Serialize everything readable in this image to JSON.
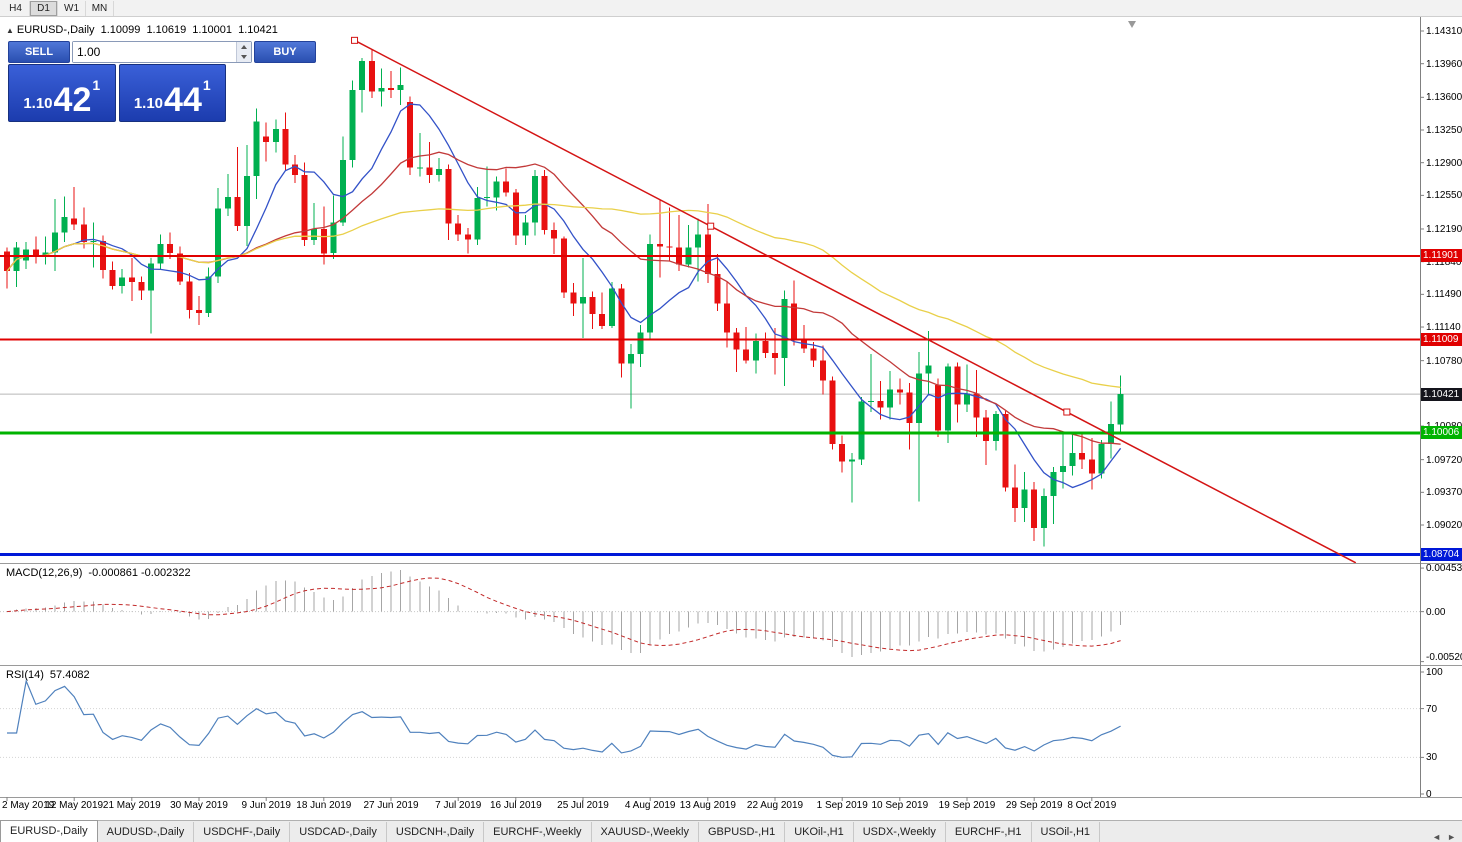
{
  "toolbar": {
    "timeframes": [
      {
        "label": "H4",
        "active": false
      },
      {
        "label": "D1",
        "active": true
      },
      {
        "label": "W1",
        "active": false
      },
      {
        "label": "MN",
        "active": false
      }
    ]
  },
  "header": {
    "collapse_icon": "▲",
    "symbol": "EURUSD-,Daily",
    "open": "1.10099",
    "high": "1.10619",
    "low": "1.10001",
    "close": "1.10421"
  },
  "trade_panel": {
    "sell_label": "SELL",
    "buy_label": "BUY",
    "volume": "1.00",
    "sell_price_base": "1.10",
    "sell_price_pips": "42",
    "sell_price_point": "1",
    "buy_price_base": "1.10",
    "buy_price_pips": "44",
    "buy_price_point": "1"
  },
  "price_axis": {
    "ticks": [
      "1.14310",
      "1.13960",
      "1.13600",
      "1.13250",
      "1.12900",
      "1.12550",
      "1.12190",
      "1.11840",
      "1.11490",
      "1.11140",
      "1.10780",
      "1.10430",
      "1.10080",
      "1.09720",
      "1.09370",
      "1.09020"
    ]
  },
  "levels": [
    {
      "name": "resistance-upper",
      "price": 1.11901,
      "label": "1.11901",
      "color": "#e00000",
      "width": 2
    },
    {
      "name": "resistance-lower",
      "price": 1.11009,
      "label": "1.11009",
      "color": "#e00000",
      "width": 2
    },
    {
      "name": "support-green",
      "price": 1.10006,
      "label": "1.10006",
      "color": "#00b300",
      "width": 3
    },
    {
      "name": "support-blue",
      "price": 1.08704,
      "label": "1.08704",
      "color": "#0018d8",
      "width": 3
    }
  ],
  "current_price": {
    "price": 1.10421,
    "label": "1.10421",
    "line_color": "#b6b6b6",
    "label_bg": "#14141c"
  },
  "trendline": {
    "color": "#d41414",
    "p1": {
      "index": 36.2,
      "price": 1.1421
    },
    "p2": {
      "index": 110.4,
      "price": 1.1023
    },
    "extend_to_index": 140.5
  },
  "macd": {
    "label": "MACD(12,26,9)",
    "values_text": "-0.000861 -0.002322",
    "fast": 12,
    "slow": 26,
    "signal": 9,
    "hist_color": "#a6a6a6",
    "signal_color": "#c22a2a",
    "scale_ticks": [
      {
        "value": 0.004536,
        "label": "0.004536"
      },
      {
        "value": 0,
        "label": "0.00"
      },
      {
        "value": -0.005205,
        "label": "-0.005205"
      }
    ]
  },
  "rsi": {
    "label": "RSI(14)",
    "value_text": "57.4082",
    "period": 14,
    "color": "#4f81bd",
    "scale_ticks": [
      {
        "value": 100,
        "label": "100"
      },
      {
        "value": 70,
        "label": "70"
      },
      {
        "value": 30,
        "label": "30"
      },
      {
        "value": 0,
        "label": "0"
      }
    ]
  },
  "time_axis": {
    "ticks": [
      {
        "label": "2 May 2019",
        "index": 0
      },
      {
        "label": "12 May 2019",
        "index": 7
      },
      {
        "label": "21 May 2019",
        "index": 13
      },
      {
        "label": "30 May 2019",
        "index": 20
      },
      {
        "label": "9 Jun 2019",
        "index": 27
      },
      {
        "label": "18 Jun 2019",
        "index": 33
      },
      {
        "label": "27 Jun 2019",
        "index": 40
      },
      {
        "label": "7 Jul 2019",
        "index": 47
      },
      {
        "label": "16 Jul 2019",
        "index": 53
      },
      {
        "label": "25 Jul 2019",
        "index": 60
      },
      {
        "label": "4 Aug 2019",
        "index": 67
      },
      {
        "label": "13 Aug 2019",
        "index": 73
      },
      {
        "label": "22 Aug 2019",
        "index": 80
      },
      {
        "label": "1 Sep 2019",
        "index": 87
      },
      {
        "label": "10 Sep 2019",
        "index": 93
      },
      {
        "label": "19 Sep 2019",
        "index": 100
      },
      {
        "label": "29 Sep 2019",
        "index": 107
      },
      {
        "label": "8 Oct 2019",
        "index": 113
      }
    ]
  },
  "tabs": {
    "scroll_left_icon": "◄",
    "scroll_right_icon": "►",
    "items": [
      {
        "label": "EURUSD-,Daily",
        "active": true
      },
      {
        "label": "AUDUSD-,Daily",
        "active": false
      },
      {
        "label": "USDCHF-,Daily",
        "active": false
      },
      {
        "label": "USDCAD-,Daily",
        "active": false
      },
      {
        "label": "USDCNH-,Daily",
        "active": false
      },
      {
        "label": "EURCHF-,Weekly",
        "active": false
      },
      {
        "label": "XAUUSD-,Weekly",
        "active": false
      },
      {
        "label": "GBPUSD-,H1",
        "active": false
      },
      {
        "label": "UKOil-,H1",
        "active": false
      },
      {
        "label": "USDX-,Weekly",
        "active": false
      },
      {
        "label": "EURCHF-,H1",
        "active": false
      },
      {
        "label": "USOil-,H1",
        "active": false
      }
    ]
  },
  "chart_data": {
    "type": "candlestick",
    "symbol": "EURUSD",
    "timeframe": "Daily",
    "up_color": "#00b050",
    "down_color": "#e81010",
    "moving_averages": [
      {
        "period": 8,
        "color": "#3352c8"
      },
      {
        "period": 21,
        "color": "#c23a3a"
      },
      {
        "period": 50,
        "color": "#e9d04a"
      }
    ],
    "candles": [
      [
        1.1195,
        1.1199,
        1.1155,
        1.1174
      ],
      [
        1.1174,
        1.1205,
        1.1157,
        1.1199
      ],
      [
        1.1185,
        1.1205,
        1.1176,
        1.1197
      ],
      [
        1.1197,
        1.1211,
        1.1182,
        1.119
      ],
      [
        1.119,
        1.1211,
        1.1181,
        1.1194
      ],
      [
        1.1194,
        1.1251,
        1.1174,
        1.1215
      ],
      [
        1.1215,
        1.1254,
        1.1205,
        1.1232
      ],
      [
        1.123,
        1.1264,
        1.1218,
        1.1224
      ],
      [
        1.1224,
        1.1242,
        1.1198,
        1.1205
      ],
      [
        1.1205,
        1.1226,
        1.1178,
        1.1206
      ],
      [
        1.1206,
        1.1212,
        1.1166,
        1.1175
      ],
      [
        1.1175,
        1.1184,
        1.1154,
        1.1158
      ],
      [
        1.1158,
        1.1176,
        1.115,
        1.1167
      ],
      [
        1.1167,
        1.1188,
        1.1142,
        1.1162
      ],
      [
        1.1162,
        1.1168,
        1.1143,
        1.1153
      ],
      [
        1.1153,
        1.1188,
        1.1107,
        1.1182
      ],
      [
        1.1182,
        1.1213,
        1.1175,
        1.1203
      ],
      [
        1.1203,
        1.1215,
        1.1187,
        1.1193
      ],
      [
        1.1193,
        1.12,
        1.1159,
        1.1163
      ],
      [
        1.1163,
        1.1172,
        1.1123,
        1.1132
      ],
      [
        1.1132,
        1.1147,
        1.1116,
        1.1129
      ],
      [
        1.1129,
        1.1178,
        1.1125,
        1.1168
      ],
      [
        1.1168,
        1.1263,
        1.1161,
        1.1241
      ],
      [
        1.1241,
        1.1278,
        1.1233,
        1.1253
      ],
      [
        1.1253,
        1.1307,
        1.1217,
        1.1222
      ],
      [
        1.1222,
        1.1309,
        1.1201,
        1.1276
      ],
      [
        1.1276,
        1.1348,
        1.1251,
        1.1334
      ],
      [
        1.1318,
        1.1333,
        1.1291,
        1.1312
      ],
      [
        1.1312,
        1.1336,
        1.1301,
        1.1326
      ],
      [
        1.1326,
        1.1344,
        1.1281,
        1.1288
      ],
      [
        1.1288,
        1.1298,
        1.1268,
        1.1277
      ],
      [
        1.1277,
        1.129,
        1.1201,
        1.1207
      ],
      [
        1.1207,
        1.1247,
        1.1202,
        1.1219
      ],
      [
        1.1219,
        1.1243,
        1.1181,
        1.1193
      ],
      [
        1.1193,
        1.1255,
        1.1187,
        1.1226
      ],
      [
        1.1226,
        1.1318,
        1.1222,
        1.1293
      ],
      [
        1.1293,
        1.1378,
        1.1285,
        1.1368
      ],
      [
        1.1368,
        1.1402,
        1.1344,
        1.1399
      ],
      [
        1.1399,
        1.1412,
        1.1359,
        1.1366
      ],
      [
        1.1366,
        1.1391,
        1.135,
        1.137
      ],
      [
        1.137,
        1.1388,
        1.1359,
        1.1368
      ],
      [
        1.1368,
        1.1392,
        1.1352,
        1.1373
      ],
      [
        1.1355,
        1.1361,
        1.1277,
        1.1285
      ],
      [
        1.1285,
        1.1322,
        1.1275,
        1.1285
      ],
      [
        1.1285,
        1.1312,
        1.1268,
        1.1277
      ],
      [
        1.1277,
        1.1295,
        1.127,
        1.1283
      ],
      [
        1.1283,
        1.1288,
        1.1207,
        1.1225
      ],
      [
        1.1225,
        1.1234,
        1.1206,
        1.1213
      ],
      [
        1.1213,
        1.122,
        1.1193,
        1.1208
      ],
      [
        1.1208,
        1.1264,
        1.1202,
        1.1252
      ],
      [
        1.1252,
        1.1286,
        1.1243,
        1.1253
      ],
      [
        1.1253,
        1.1275,
        1.1239,
        1.127
      ],
      [
        1.127,
        1.1284,
        1.1254,
        1.1258
      ],
      [
        1.1258,
        1.1262,
        1.1202,
        1.1212
      ],
      [
        1.1212,
        1.1234,
        1.1202,
        1.1226
      ],
      [
        1.1226,
        1.1282,
        1.1212,
        1.1276
      ],
      [
        1.1276,
        1.1282,
        1.1213,
        1.1218
      ],
      [
        1.1218,
        1.1226,
        1.1192,
        1.1209
      ],
      [
        1.1209,
        1.1211,
        1.1145,
        1.1151
      ],
      [
        1.1151,
        1.1161,
        1.1126,
        1.1139
      ],
      [
        1.1139,
        1.1188,
        1.1102,
        1.1146
      ],
      [
        1.1146,
        1.1152,
        1.1112,
        1.1128
      ],
      [
        1.1128,
        1.1151,
        1.1112,
        1.1115
      ],
      [
        1.1115,
        1.1162,
        1.1113,
        1.1155
      ],
      [
        1.1155,
        1.116,
        1.106,
        1.1075
      ],
      [
        1.1075,
        1.1096,
        1.1027,
        1.1085
      ],
      [
        1.1085,
        1.1116,
        1.1071,
        1.1108
      ],
      [
        1.1108,
        1.1213,
        1.1101,
        1.1203
      ],
      [
        1.1203,
        1.125,
        1.1167,
        1.12
      ],
      [
        1.12,
        1.1242,
        1.1184,
        1.1199
      ],
      [
        1.1199,
        1.1234,
        1.1174,
        1.1181
      ],
      [
        1.1181,
        1.1223,
        1.1178,
        1.1199
      ],
      [
        1.1199,
        1.123,
        1.1163,
        1.1213
      ],
      [
        1.1213,
        1.1246,
        1.1161,
        1.1171
      ],
      [
        1.1171,
        1.1192,
        1.1131,
        1.1139
      ],
      [
        1.1139,
        1.1163,
        1.1092,
        1.1108
      ],
      [
        1.1108,
        1.1113,
        1.1066,
        1.109
      ],
      [
        1.109,
        1.1114,
        1.1075,
        1.1078
      ],
      [
        1.1078,
        1.1107,
        1.1064,
        1.1099
      ],
      [
        1.1099,
        1.1108,
        1.1081,
        1.1086
      ],
      [
        1.1086,
        1.1113,
        1.1063,
        1.1081
      ],
      [
        1.1081,
        1.1153,
        1.1051,
        1.1144
      ],
      [
        1.1139,
        1.1164,
        1.1094,
        1.1101
      ],
      [
        1.1101,
        1.1116,
        1.1086,
        1.1091
      ],
      [
        1.1091,
        1.1098,
        1.1071,
        1.1078
      ],
      [
        1.1078,
        1.1094,
        1.1042,
        1.1057
      ],
      [
        1.1057,
        1.1061,
        1.0983,
        1.0989
      ],
      [
        1.0989,
        1.0998,
        1.0958,
        1.097
      ],
      [
        1.097,
        1.0979,
        1.0926,
        1.0972
      ],
      [
        1.0972,
        1.1039,
        1.0966,
        1.1034
      ],
      [
        1.1034,
        1.1085,
        1.1023,
        1.1035
      ],
      [
        1.1035,
        1.1056,
        1.1015,
        1.1028
      ],
      [
        1.1028,
        1.1067,
        1.1015,
        1.1047
      ],
      [
        1.1047,
        1.1059,
        1.1031,
        1.1044
      ],
      [
        1.1044,
        1.1054,
        1.0983,
        1.1011
      ],
      [
        1.1011,
        1.1087,
        1.0927,
        1.1064
      ],
      [
        1.1064,
        1.111,
        1.1041,
        1.1073
      ],
      [
        1.1052,
        1.1059,
        1.0996,
        1.1003
      ],
      [
        1.1003,
        1.1075,
        1.099,
        1.1072
      ],
      [
        1.1072,
        1.1076,
        1.1012,
        1.1031
      ],
      [
        1.1031,
        1.1074,
        1.1023,
        1.1043
      ],
      [
        1.1043,
        1.1068,
        1.0996,
        1.1017
      ],
      [
        1.1017,
        1.1025,
        1.0966,
        1.0992
      ],
      [
        1.0992,
        1.1024,
        1.0982,
        1.1021
      ],
      [
        1.1021,
        1.1024,
        1.0938,
        1.0942
      ],
      [
        1.0942,
        1.0967,
        1.0905,
        1.092
      ],
      [
        1.092,
        1.0959,
        1.0905,
        1.094
      ],
      [
        1.094,
        1.0948,
        1.0885,
        1.0899
      ],
      [
        1.0899,
        1.0941,
        1.0879,
        1.0933
      ],
      [
        1.0933,
        1.0964,
        1.0903,
        1.0959
      ],
      [
        1.0959,
        1.0999,
        1.0941,
        1.0965
      ],
      [
        1.0965,
        1.0999,
        1.0955,
        1.0979
      ],
      [
        1.0979,
        1.1,
        1.0962,
        1.0972
      ],
      [
        1.0972,
        1.0995,
        1.094,
        1.0957
      ],
      [
        1.0957,
        1.0993,
        1.0952,
        1.0989
      ],
      [
        1.0989,
        1.1034,
        1.0973,
        1.101
      ],
      [
        1.10099,
        1.10619,
        1.10001,
        1.10421
      ]
    ]
  }
}
